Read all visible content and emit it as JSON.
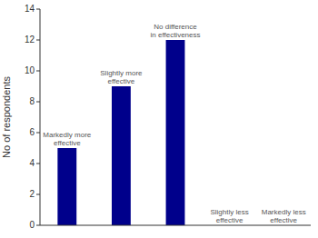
{
  "chart_data": {
    "type": "bar",
    "ylabel": "No of respondents",
    "categories": [
      "Markedly more effective",
      "Slightly more effective",
      "No difference in effectiveness",
      "Slightly less effective",
      "Markedly less effective"
    ],
    "values": [
      5,
      9,
      12,
      0,
      0
    ],
    "color": "#00008B",
    "ylim": [
      0,
      14
    ],
    "yticks": [
      0,
      2,
      4,
      6,
      8,
      10,
      12,
      14
    ],
    "grid": false,
    "tick_labels": "y"
  }
}
